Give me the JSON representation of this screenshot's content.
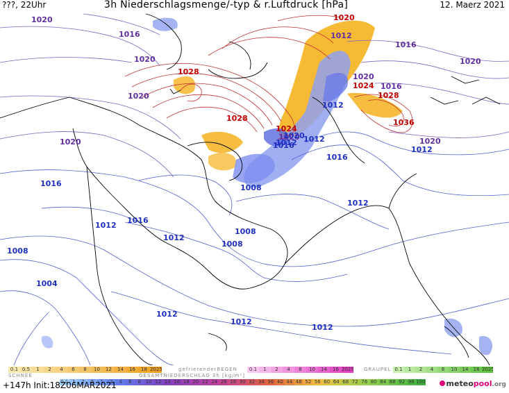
{
  "header": {
    "left": "???, 22Uhr",
    "title": "3h Niederschlagsmenge/-typ & r.Luftdruck [hPa]",
    "date": "12. Maerz 2021"
  },
  "isobar_labels": {
    "red": [
      "1028",
      "1028",
      "1024",
      "1024",
      "1028",
      "1036",
      "1020"
    ],
    "purple": [
      "1020",
      "1020",
      "1020",
      "1016",
      "1020",
      "1020",
      "1020",
      "1016",
      "1020",
      "1012",
      "1016",
      "1020"
    ],
    "blue": [
      "1016",
      "1016",
      "1012",
      "1012",
      "1012",
      "1008",
      "1012",
      "1016",
      "1012",
      "1008",
      "1012",
      "1008",
      "1008",
      "1004",
      "1012",
      "1012",
      "1012",
      "1012",
      "1016",
      "1020"
    ]
  },
  "legend": {
    "schnee_label": "SCHNEE",
    "regen_label": "gefrierenderREGEN",
    "graupel_label": "GRAUPEL",
    "gesamt_label": "GESAMTNIEDERSCHLAG 3h [kg/m²]",
    "snow_values": [
      "0.1",
      "0.5",
      "1",
      "2",
      "4",
      "6",
      "8",
      "10",
      "12",
      "14",
      "16",
      "18",
      "2025+"
    ],
    "regen_values": [
      "0.1",
      "1",
      "2",
      "4",
      "8",
      "10",
      "14",
      "16",
      "2025+"
    ],
    "graupel_values": [
      "0.1",
      "1",
      "2",
      "4",
      "8",
      "10",
      "14",
      "16",
      "2025+"
    ],
    "total_values": [
      "0.1",
      "1",
      "2",
      "5",
      "1",
      "2",
      "4",
      "6",
      "8",
      "10",
      "12",
      "14",
      "16",
      "18",
      "20",
      "22",
      "24",
      "26",
      "28",
      "30",
      "32",
      "34",
      "36",
      "40",
      "44",
      "48",
      "52",
      "56",
      "60",
      "64",
      "68",
      "72",
      "76",
      "80",
      "84",
      "88",
      "92",
      "96",
      "100"
    ],
    "colors": {
      "snow": "#f0a020",
      "regen": "#e040c0",
      "graupel": "#60c040",
      "total_low": "#a0d0ff",
      "total_high": "#e02020"
    }
  },
  "run_info": "+147h Init:18Z06MAR2021",
  "logo": {
    "a": "meteo",
    "b": "pool",
    "c": ".org"
  }
}
